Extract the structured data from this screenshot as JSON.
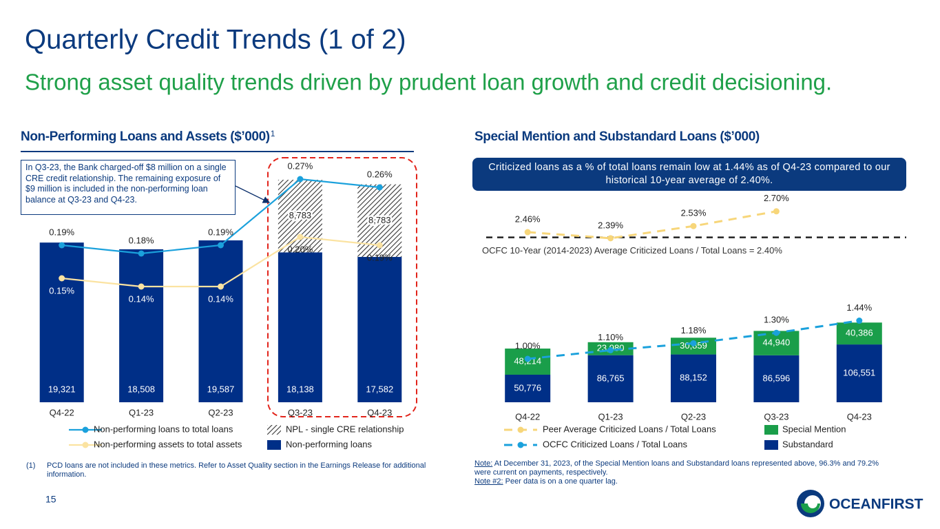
{
  "title": "Quarterly Credit Trends (1 of 2)",
  "subtitle": "Strong asset quality trends driven by prudent loan growth and credit decisioning.",
  "chart_data": [
    {
      "type": "bar",
      "title": "Non-Performing Loans and Assets ($’000)",
      "title_note": "1",
      "annotation": "In Q3-23, the Bank charged-off $8 million on a single CRE credit relationship. The remaining exposure of $9 million is included in the non-performing loan balance at Q3-23 and Q4-23.",
      "categories": [
        "Q4-22",
        "Q1-23",
        "Q2-23",
        "Q3-23",
        "Q4-23"
      ],
      "stacked": true,
      "ylim": [
        0,
        30000
      ],
      "y2lim": [
        0,
        0.3
      ],
      "series": [
        {
          "name": "Non-performing loans",
          "type": "bar",
          "color": "#002f87",
          "values": [
            19321,
            18508,
            19587,
            18138,
            17582
          ],
          "value_labels": [
            "19,321",
            "18,508",
            "19,587",
            "18,138",
            "17,582"
          ]
        },
        {
          "name": "NPL - single CRE relationship",
          "type": "bar",
          "pattern": "hatch",
          "color": "#333333",
          "values": [
            null,
            null,
            null,
            8783,
            8783
          ],
          "value_labels": [
            null,
            null,
            null,
            "8,783",
            "8,783"
          ]
        },
        {
          "name": "Non-performing loans to total loans",
          "type": "line",
          "axis": "y2",
          "color": "#1ba1dc",
          "label_position": "above",
          "values": [
            0.19,
            0.18,
            0.19,
            0.27,
            0.26
          ],
          "value_labels": [
            "0.19%",
            "0.18%",
            "0.19%",
            "0.27%",
            "0.26%"
          ]
        },
        {
          "name": "Non-performing assets to total assets",
          "type": "line",
          "axis": "y2",
          "color": "#fbe3a1",
          "label_position": "below",
          "values": [
            0.15,
            0.14,
            0.14,
            0.2,
            0.19
          ],
          "value_labels": [
            "0.15%",
            "0.14%",
            "0.14%",
            "0.20%",
            "0.19%"
          ]
        }
      ]
    },
    {
      "type": "bar",
      "title": "Special Mention and Substandard Loans ($’000)",
      "annotation": "Criticized loans as a % of total loans remain low at 1.44% as of Q4-23 compared to our historical 10-year average of 2.40%.",
      "categories": [
        "Q4-22",
        "Q1-23",
        "Q2-23",
        "Q3-23",
        "Q4-23"
      ],
      "stacked": true,
      "ylim": [
        0,
        400000
      ],
      "y2lim": [
        0.5,
        3.0
      ],
      "reference_line": {
        "value": 2.4,
        "label": "OCFC 10-Year (2014-2023) Average Criticized Loans / Total Loans = 2.40%"
      },
      "series": [
        {
          "name": "Substandard",
          "type": "bar",
          "color": "#002f87",
          "values": [
            50776,
            86765,
            88152,
            86596,
            106551
          ],
          "value_labels": [
            "50,776",
            "86,765",
            "88,152",
            "86,596",
            "106,551"
          ]
        },
        {
          "name": "Special Mention",
          "type": "bar",
          "color": "#1a9e4a",
          "values": [
            48214,
            23980,
            30859,
            44940,
            40386
          ],
          "value_labels": [
            "48,214",
            "23,980",
            "30,859",
            "44,940",
            "40,386"
          ]
        },
        {
          "name": "Peer Average Criticized Loans / Total Loans",
          "type": "line",
          "axis": "y2",
          "dashed": true,
          "color": "#f7d67a",
          "label_position": "above",
          "values": [
            2.46,
            2.39,
            2.53,
            2.7,
            null
          ],
          "value_labels": [
            "2.46%",
            "2.39%",
            "2.53%",
            "2.70%",
            null
          ]
        },
        {
          "name": "OCFC Criticized Loans / Total Loans",
          "type": "line",
          "axis": "y2",
          "dashed": true,
          "color": "#1ba1dc",
          "label_position": "above",
          "values": [
            1.0,
            1.1,
            1.18,
            1.3,
            1.44
          ],
          "value_labels": [
            "1.00%",
            "1.10%",
            "1.18%",
            "1.30%",
            "1.44%"
          ]
        }
      ]
    }
  ],
  "footnote": {
    "marker": "(1)",
    "text": "PCD loans are not included in these metrics. Refer to Asset Quality section in the Earnings Release for additional information."
  },
  "notes": [
    {
      "label": "Note:",
      "text": "At December 31, 2023, of the Special Mention loans and Substandard loans represented above, 96.3% and 79.2% were current on payments, respectively."
    },
    {
      "label": "Note #2:",
      "text": "Peer data is on a one quarter lag."
    }
  ],
  "page_number": "15",
  "logo": "OCEANFIRST"
}
